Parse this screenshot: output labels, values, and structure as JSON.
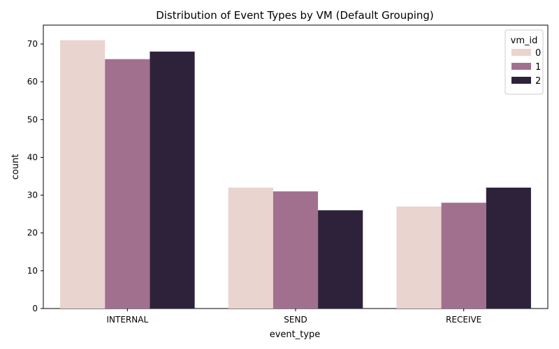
{
  "chart_data": {
    "type": "bar",
    "title": "Distribution of Event Types by VM (Default Grouping)",
    "xlabel": "event_type",
    "ylabel": "count",
    "categories": [
      "INTERNAL",
      "SEND",
      "RECEIVE"
    ],
    "ylim": [
      0,
      75
    ],
    "yticks": [
      0,
      10,
      20,
      30,
      40,
      50,
      60,
      70
    ],
    "grid": false,
    "legend": {
      "title": "vm_id",
      "placement": "top-right"
    },
    "series": [
      {
        "name": "0",
        "color": "#e9d4d0",
        "values": [
          71,
          32,
          27
        ]
      },
      {
        "name": "1",
        "color": "#a2708f",
        "values": [
          66,
          31,
          28
        ]
      },
      {
        "name": "2",
        "color": "#2e223a",
        "values": [
          68,
          26,
          32
        ]
      }
    ]
  }
}
